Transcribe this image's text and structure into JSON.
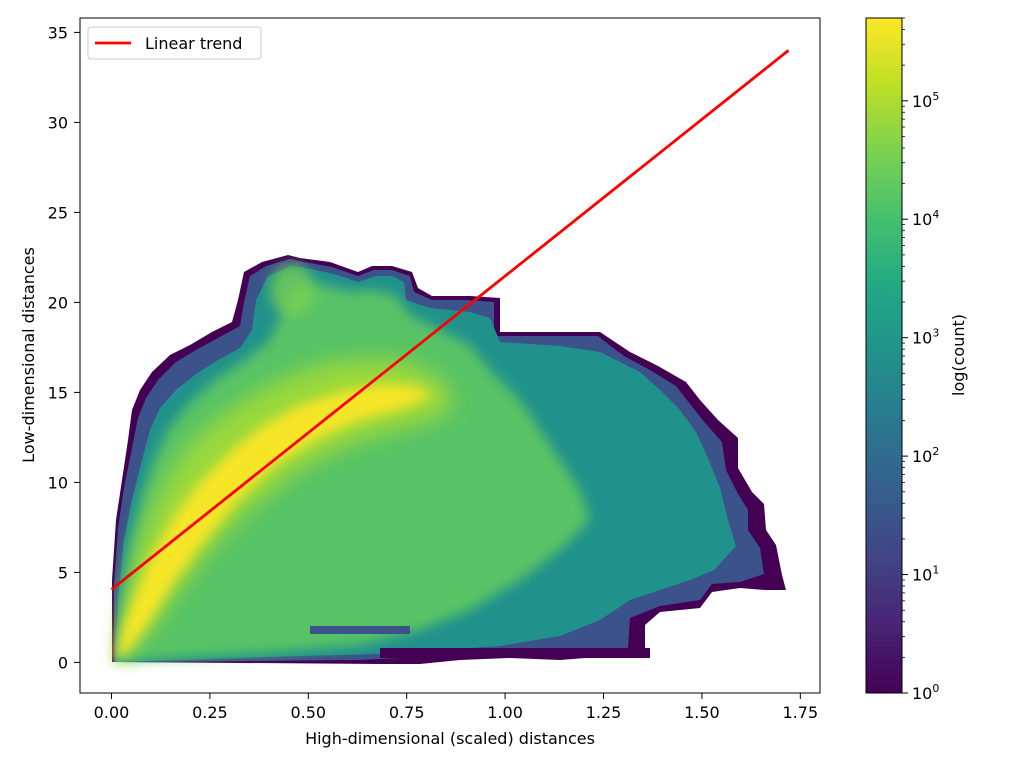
{
  "chart_data": {
    "type": "hexbin",
    "xlabel": "High-dimensional (scaled) distances",
    "ylabel": "Low-dimensional distances",
    "xlim": [
      -0.08,
      1.8
    ],
    "ylim": [
      -1.7,
      35.8
    ],
    "x_ticks": [
      "0.00",
      "0.25",
      "0.50",
      "0.75",
      "1.00",
      "1.25",
      "1.50",
      "1.75"
    ],
    "x_tick_values": [
      0,
      0.25,
      0.5,
      0.75,
      1.0,
      1.25,
      1.5,
      1.75
    ],
    "y_ticks": [
      "0",
      "5",
      "10",
      "15",
      "20",
      "25",
      "30",
      "35"
    ],
    "y_tick_values": [
      0,
      5,
      10,
      15,
      20,
      25,
      30,
      35
    ],
    "grid": false,
    "legend": {
      "placement": "upper-left",
      "entries": [
        "Linear trend"
      ]
    },
    "series": [
      {
        "name": "Linear trend",
        "kind": "line",
        "color": "#ff0000",
        "x": [
          0.0,
          1.72
        ],
        "y": [
          4.05,
          34.0
        ]
      }
    ],
    "density_region": {
      "description_points_x": [
        0.0,
        0.02,
        0.05,
        0.1,
        0.2,
        0.35,
        0.45,
        0.55,
        0.7,
        0.78,
        0.9,
        1.0,
        1.25,
        1.45,
        1.6,
        1.72
      ],
      "upper_envelope_y": [
        8.0,
        12.0,
        15.5,
        17.5,
        19.0,
        21.5,
        22.5,
        21.5,
        22.0,
        20.5,
        20.3,
        18.3,
        18.3,
        15.0,
        9.0,
        5.0
      ],
      "lower_envelope_y": [
        0,
        0,
        0,
        0,
        0,
        0,
        0,
        0,
        0,
        0,
        0,
        0,
        0,
        0,
        0,
        0
      ],
      "ridge_x": [
        0.0,
        0.1,
        0.2,
        0.3,
        0.4,
        0.5,
        0.6,
        0.7
      ],
      "ridge_y": [
        0.0,
        3.5,
        6.5,
        9.0,
        11.5,
        13.0,
        14.0,
        15.0
      ]
    },
    "colorbar": {
      "label": "log(count)",
      "scale": "log",
      "colormap": "viridis",
      "range": [
        1,
        500000
      ],
      "ticks": [
        {
          "base": "10",
          "exp": "0",
          "value": 1
        },
        {
          "base": "10",
          "exp": "1",
          "value": 10
        },
        {
          "base": "10",
          "exp": "2",
          "value": 100
        },
        {
          "base": "10",
          "exp": "3",
          "value": 1000
        },
        {
          "base": "10",
          "exp": "4",
          "value": 10000
        },
        {
          "base": "10",
          "exp": "5",
          "value": 100000
        }
      ]
    }
  }
}
